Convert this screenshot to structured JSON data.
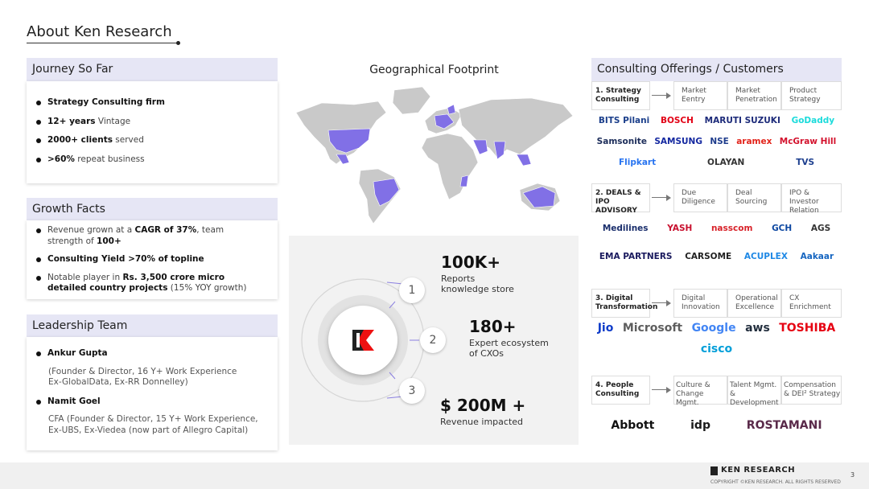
{
  "title": "About Ken Research",
  "journey": {
    "heading": "Journey So Far",
    "bullets": [
      [
        {
          "text": "Strategy Consulting firm",
          "bold": true
        }
      ],
      [
        {
          "text": "12+ years",
          "bold": true
        },
        {
          "text": " Vintage",
          "bold": false
        }
      ],
      [
        {
          "text": "2000+ clients",
          "bold": true
        },
        {
          "text": " served",
          "bold": false
        }
      ],
      [
        {
          "text": ">60%",
          "bold": true
        },
        {
          "text": " repeat business",
          "bold": false
        }
      ]
    ]
  },
  "growth": {
    "heading": "Growth Facts",
    "bullets": [
      [
        {
          "text": "Revenue grown at a ",
          "bold": false
        },
        {
          "text": "CAGR of 37%",
          "bold": true
        },
        {
          "text": ", team strength of ",
          "bold": false
        },
        {
          "text": "100+",
          "bold": true
        }
      ],
      [
        {
          "text": "Consulting Yield >70% of topline",
          "bold": true
        }
      ],
      [
        {
          "text": "Notable player in ",
          "bold": false
        },
        {
          "text": "Rs. 3,500 crore micro detailed country projects",
          "bold": true
        },
        {
          "text": " (15% YOY growth)",
          "bold": false
        }
      ]
    ]
  },
  "leadership": {
    "heading": "Leadership Team",
    "people": [
      {
        "name": "Ankur Gupta",
        "details": [
          "(Founder & Director, 16 Y+  Work Experience",
          "Ex-GlobalData, Ex-RR Donnelley)"
        ]
      },
      {
        "name": "Namit Goel",
        "details": [
          "CFA (Founder & Director, 15 Y+ Work Experience,",
          "Ex-UBS, Ex-Viedea (now part of Allegro Capital)"
        ]
      }
    ]
  },
  "footprint": {
    "heading": "Geographical Footprint"
  },
  "stats": [
    {
      "number": "1",
      "value": "100K+",
      "label": [
        "Reports",
        "knowledge store"
      ]
    },
    {
      "number": "2",
      "value": "180+",
      "label": [
        "Expert ecosystem",
        "of CXOs"
      ]
    },
    {
      "number": "3",
      "value": "$ 200M +",
      "label": [
        "Revenue impacted"
      ]
    }
  ],
  "offerings": {
    "heading": "Consulting Offerings / Customers",
    "sections": [
      {
        "label": [
          "1. Strategy",
          "Consulting"
        ],
        "services": [
          [
            "Market",
            "Eentry"
          ],
          [
            "Market",
            "Penetration"
          ],
          [
            "Product",
            "Strategy"
          ]
        ],
        "clients": [
          {
            "name": "BITS Pilani",
            "color": "#1b3f8b"
          },
          {
            "name": "BOSCH",
            "color": "#e20015"
          },
          {
            "name": "MARUTI SUZUKI",
            "color": "#1d2b7a"
          },
          {
            "name": "GoDaddy",
            "color": "#1bdbdb"
          },
          {
            "name": "Samsonite",
            "color": "#1c2d5a"
          },
          {
            "name": "SAMSUNG",
            "color": "#1428a0"
          },
          {
            "name": "NSE",
            "color": "#1e3c8c"
          },
          {
            "name": "aramex",
            "color": "#e2231a"
          },
          {
            "name": "McGraw Hill",
            "color": "#d3122d"
          },
          {
            "name": "Flipkart",
            "color": "#2874f0"
          },
          {
            "name": "OLAYAN",
            "color": "#333333"
          },
          {
            "name": "TVS",
            "color": "#1d3f8f"
          }
        ]
      },
      {
        "label": [
          "2. DEALS & IPO",
          "ADVISORY"
        ],
        "services": [
          [
            "Due",
            "Diligence"
          ],
          [
            "Deal",
            "Sourcing"
          ],
          [
            "IPO & Investor",
            "Relation"
          ]
        ],
        "clients": [
          {
            "name": "Medilines",
            "color": "#1a2e6c"
          },
          {
            "name": "YASH",
            "color": "#c8102e"
          },
          {
            "name": "nasscom",
            "color": "#d8232a"
          },
          {
            "name": "GCH",
            "color": "#0d47a1"
          },
          {
            "name": "AGS",
            "color": "#333333"
          },
          {
            "name": "EMA PARTNERS",
            "color": "#1a1a5e"
          },
          {
            "name": "CARSOME",
            "color": "#222222"
          },
          {
            "name": "ACUPLEX",
            "color": "#1e88e5"
          },
          {
            "name": "Aakaar",
            "color": "#1565c0"
          }
        ]
      },
      {
        "label": [
          "3. Digital",
          "Transformation"
        ],
        "services": [
          [
            "Digital",
            "Innovation"
          ],
          [
            "Operational",
            "Excellence"
          ],
          [
            "CX",
            "Enrichment"
          ]
        ],
        "clients": [
          {
            "name": "Jio",
            "color": "#0f3cc9"
          },
          {
            "name": "Microsoft",
            "color": "#5e5e5e"
          },
          {
            "name": "Google",
            "color": "#4285f4"
          },
          {
            "name": "aws",
            "color": "#232f3e"
          },
          {
            "name": "TOSHIBA",
            "color": "#e60012"
          },
          {
            "name": "cisco",
            "color": "#049fd9"
          }
        ]
      },
      {
        "label": [
          "4. People",
          "Consulting"
        ],
        "services": [
          [
            "Culture &",
            "Change Mgmt."
          ],
          [
            "Talent  Mgmt.",
            "& Development"
          ],
          [
            "Compensation",
            "& DEI² Strategy"
          ]
        ],
        "clients": [
          {
            "name": "Abbott",
            "color": "#111111"
          },
          {
            "name": "idp",
            "color": "#1a1a1a"
          },
          {
            "name": "ROSTAMANI",
            "color": "#5a2a4a"
          }
        ]
      }
    ]
  },
  "footer": {
    "brand": "KEN RESEARCH",
    "copyright": "COPYRIGHT ©KEN RESEARCH. ALL RIGHTS RESERVED",
    "page": "3"
  }
}
